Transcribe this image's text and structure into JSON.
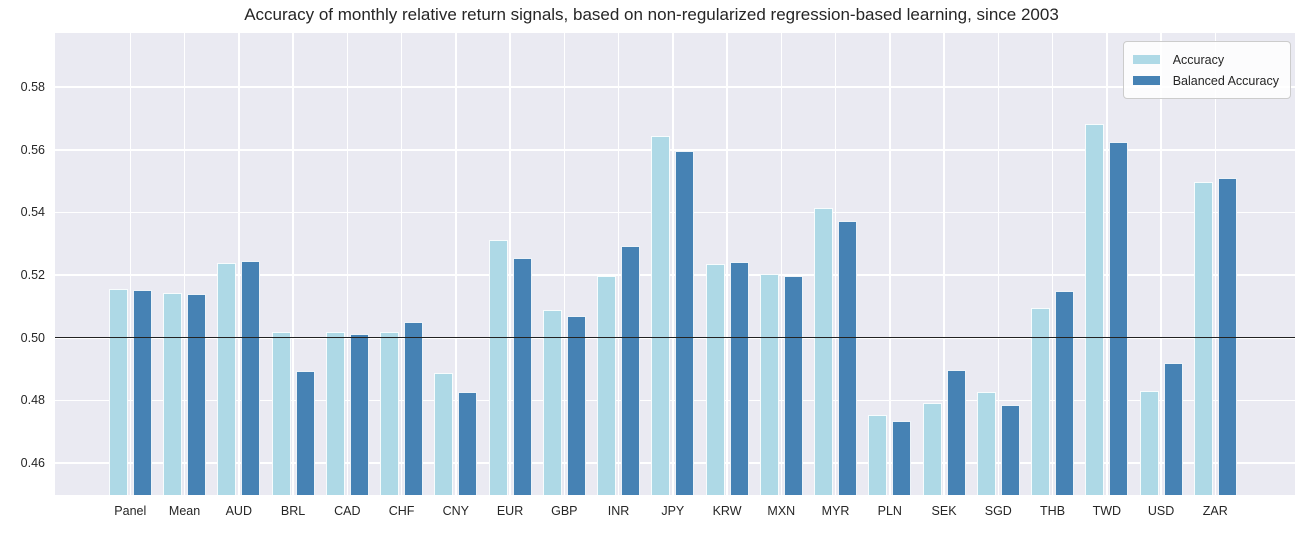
{
  "chart_data": {
    "type": "bar",
    "title": "Accuracy of monthly relative return signals, based on non-regularized regression-based learning, since 2003",
    "categories": [
      "Panel",
      "Mean",
      "AUD",
      "BRL",
      "CAD",
      "CHF",
      "CNY",
      "EUR",
      "GBP",
      "INR",
      "JPY",
      "KRW",
      "MXN",
      "MYR",
      "PLN",
      "SEK",
      "SGD",
      "THB",
      "TWD",
      "USD",
      "ZAR"
    ],
    "series": [
      {
        "name": "Accuracy",
        "color": "#aed9e6",
        "values": [
          0.5156,
          0.5144,
          0.524,
          0.5017,
          0.5019,
          0.5018,
          0.4888,
          0.5313,
          0.5088,
          0.5197,
          0.5644,
          0.5237,
          0.5203,
          0.5414,
          0.4754,
          0.4791,
          0.4828,
          0.5096,
          0.5681,
          0.483,
          0.5497
        ]
      },
      {
        "name": "Balanced Accuracy",
        "color": "#4682b4",
        "values": [
          0.5152,
          0.514,
          0.5245,
          0.4893,
          0.5013,
          0.5049,
          0.4827,
          0.5255,
          0.5071,
          0.5292,
          0.5596,
          0.5241,
          0.5197,
          0.5373,
          0.4734,
          0.4898,
          0.4785,
          0.5148,
          0.5624,
          0.492,
          0.551
        ]
      }
    ],
    "xlabel": "",
    "ylabel": "",
    "ylim": [
      0.4498,
      0.5973
    ],
    "yticks": [
      0.46,
      0.48,
      0.5,
      0.52,
      0.54,
      0.56,
      0.58
    ],
    "ytick_labels": [
      "0.46",
      "0.48",
      "0.50",
      "0.52",
      "0.54",
      "0.56",
      "0.58"
    ],
    "reference_line": {
      "y": 0.5,
      "color": "#222222"
    },
    "grid": true,
    "legend_position": "upper right",
    "colors": {
      "plot_background": "#eaeaf2",
      "gridline": "#ffffff",
      "text": "#262626",
      "legend_border": "#cccccc"
    }
  }
}
